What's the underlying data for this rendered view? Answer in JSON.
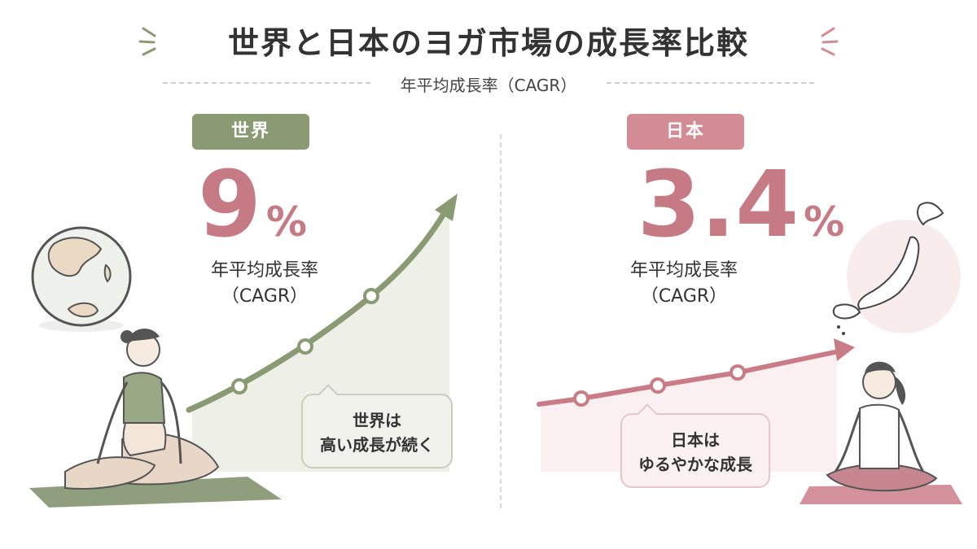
{
  "title": "世界と日本のヨガ市場の成長率比較",
  "subtitle": "年平均成長率（CAGR）",
  "world": {
    "label": "世界",
    "value": "9",
    "unit": "%",
    "cagr_label": "年平均成長率（CAGR）",
    "bubble_line1": "世界は",
    "bubble_line2": "高い成長が続く"
  },
  "japan": {
    "label": "日本",
    "value": "3.4",
    "unit": "%",
    "cagr_label": "年平均成長率（CAGR）",
    "bubble_line1": "日本は",
    "bubble_line2": "ゆるやかな成長"
  },
  "colors": {
    "world_accent": "#8a9a73",
    "japan_accent": "#d38b94",
    "value_color": "#c67a84"
  }
}
